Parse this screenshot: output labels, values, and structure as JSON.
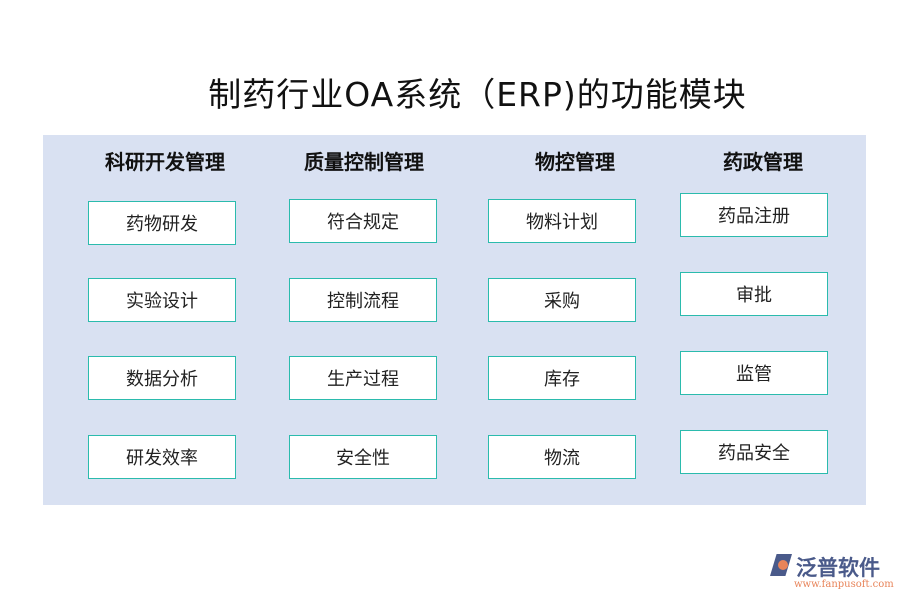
{
  "title": "制药行业OA系统（ERP)的功能模块",
  "columns": [
    {
      "heading": "科研开发管理",
      "items": [
        "药物研发",
        "实验设计",
        "数据分析",
        "研发效率"
      ]
    },
    {
      "heading": "质量控制管理",
      "items": [
        "符合规定",
        "控制流程",
        "生产过程",
        "安全性"
      ]
    },
    {
      "heading": "物控管理",
      "items": [
        "物料计划",
        "采购",
        "库存",
        "物流"
      ]
    },
    {
      "heading": "药政管理",
      "items": [
        "药品注册",
        "审批",
        "监管",
        "药品安全"
      ]
    }
  ],
  "logo": {
    "name": "泛普软件",
    "url": "www.fanpusoft.com"
  },
  "colors": {
    "panel": "#d9e1f2",
    "box_border": "#2bbbad"
  }
}
